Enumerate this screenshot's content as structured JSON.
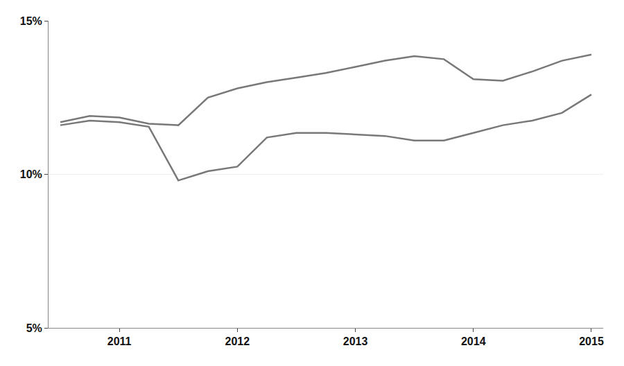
{
  "chart_data": {
    "type": "line",
    "x": [
      2010.5,
      2010.75,
      2011.0,
      2011.25,
      2011.5,
      2011.75,
      2012.0,
      2012.25,
      2012.5,
      2012.75,
      2013.0,
      2013.25,
      2013.5,
      2013.75,
      2014.0,
      2014.25,
      2014.5,
      2014.75,
      2015.0
    ],
    "series": [
      {
        "color": "#787878",
        "values": [
          11.7,
          11.9,
          11.85,
          11.65,
          11.6,
          12.5,
          12.8,
          13.0,
          13.15,
          13.3,
          13.5,
          13.7,
          13.85,
          13.75,
          13.1,
          13.05,
          13.35,
          13.7,
          13.9
        ]
      },
      {
        "color": "#787878",
        "values": [
          11.6,
          11.75,
          11.7,
          11.55,
          9.8,
          10.1,
          10.25,
          11.2,
          11.35,
          11.35,
          11.3,
          11.25,
          11.1,
          11.1,
          11.35,
          11.6,
          11.75,
          12.0,
          12.6
        ]
      }
    ],
    "xlim": [
      2010.4,
      2015.1
    ],
    "xticks": [
      2011,
      2012,
      2013,
      2014,
      2015
    ],
    "ylim": [
      5,
      15
    ],
    "yticks": [
      {
        "value": 5,
        "label": "5%"
      },
      {
        "value": 10,
        "label": "10%"
      },
      {
        "value": 15,
        "label": "15%"
      }
    ],
    "grid": "y"
  }
}
